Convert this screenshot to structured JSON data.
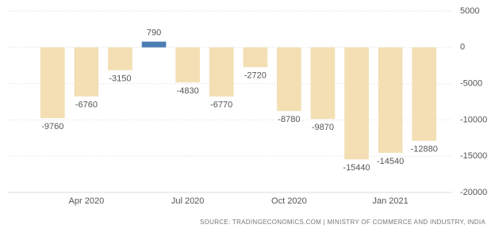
{
  "chart_data": {
    "type": "bar",
    "categories": [
      null,
      "Apr 2020",
      null,
      null,
      "Jul 2020",
      null,
      null,
      "Oct 2020",
      null,
      null,
      "Jan 2021",
      null
    ],
    "values": [
      -9760,
      -6760,
      -3150,
      790,
      -4830,
      -6770,
      -2720,
      -8780,
      -9870,
      -15440,
      -14540,
      -12880
    ],
    "colors": [
      "#f3dfb3",
      "#f3dfb3",
      "#f3dfb3",
      "#4a7db4",
      "#f3dfb3",
      "#f3dfb3",
      "#f3dfb3",
      "#f3dfb3",
      "#f3dfb3",
      "#f3dfb3",
      "#f3dfb3",
      "#f3dfb3"
    ],
    "ylim": [
      -20000,
      5000
    ],
    "yticks": [
      5000,
      0,
      -5000,
      -10000,
      -15000,
      -20000
    ],
    "grid": true,
    "source": "SOURCE: TRADINGECONOMICS.COM | MINISTRY OF COMMERCE AND INDUSTRY, INDIA"
  }
}
